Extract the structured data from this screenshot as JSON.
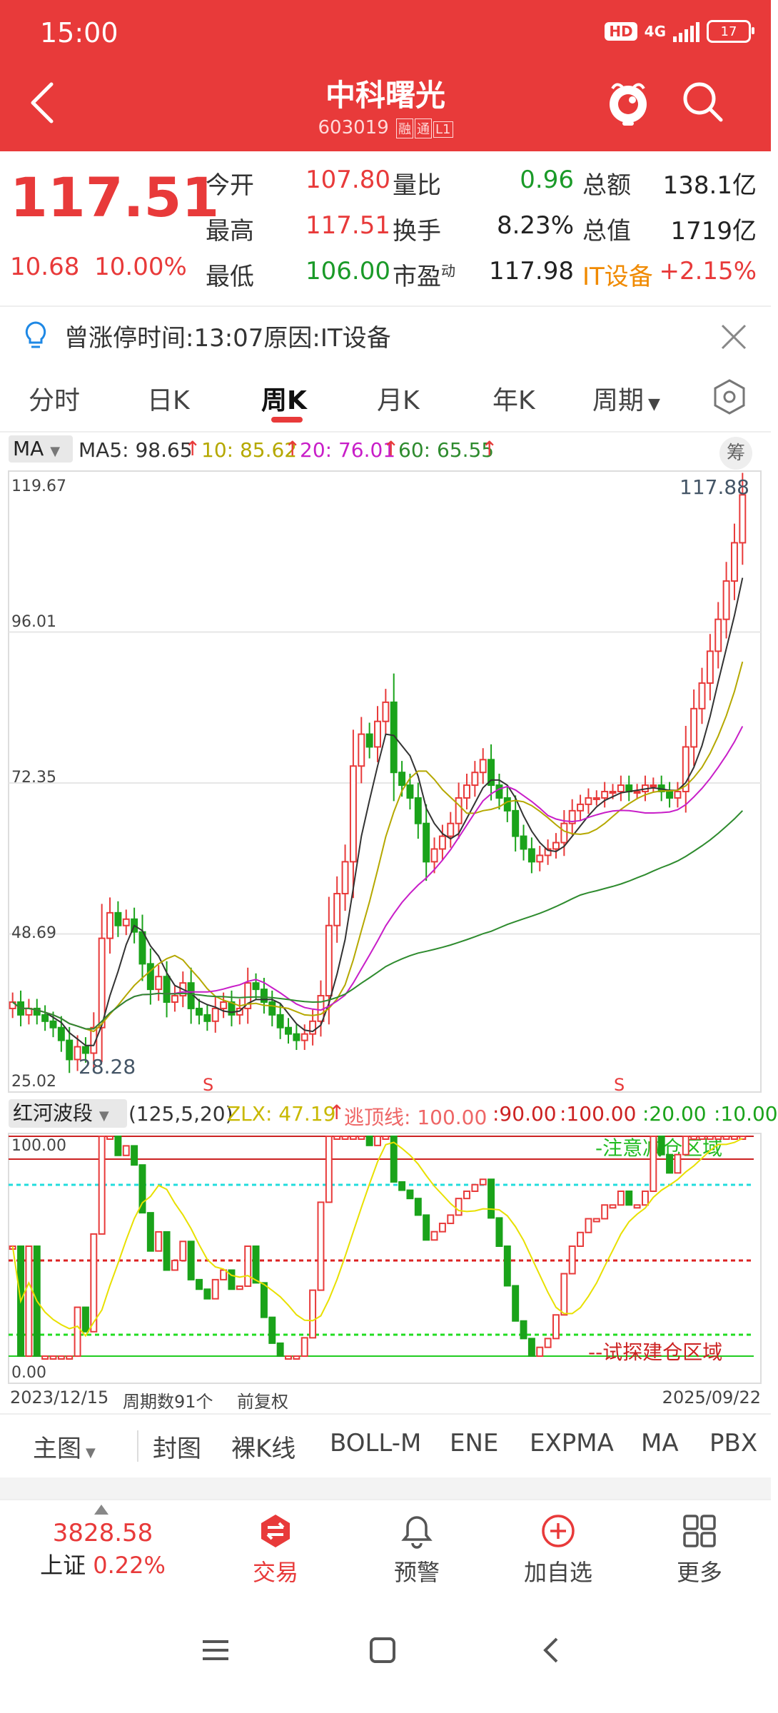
{
  "status_bar": {
    "time": "15:00",
    "hd": "HD",
    "network": "4G",
    "battery": "17"
  },
  "header": {
    "title": "中科曙光",
    "code": "603019",
    "tags": [
      "融",
      "通",
      "L1"
    ]
  },
  "quote": {
    "price": "117.51",
    "change": "10.68",
    "change_pct": "10.00%",
    "rows": [
      {
        "l1": "今开",
        "v1": "107.80",
        "l2": "量比",
        "v2": "0.96",
        "l3": "总额",
        "v3": "138.1亿"
      },
      {
        "l1": "最高",
        "v1": "117.51",
        "l2": "换手",
        "v2": "8.23%",
        "l3": "总值",
        "v3": "1719亿"
      },
      {
        "l1": "最低",
        "v1": "106.00",
        "l2": "市盈",
        "l2_sup": "动",
        "v2": "117.98",
        "l3": "IT设备",
        "v3": "+2.15%"
      }
    ]
  },
  "notice": {
    "text": "曾涨停时间:13:07原因:IT设备"
  },
  "tabs": [
    "分时",
    "日K",
    "周K",
    "月K",
    "年K",
    "周期"
  ],
  "active_tab": "周K",
  "ma": {
    "selector": "MA",
    "ma5": "MA5: 98.65",
    "ma10": "10: 85.62",
    "ma20": "20: 76.01",
    "ma60": "60: 65.55",
    "chou": "筹"
  },
  "colors": {
    "up": "#e83a3a",
    "down": "#1aa31a",
    "ma5": "#333333",
    "ma10": "#b5a800",
    "ma20": "#c81ec8",
    "ma60": "#2e8b2e"
  },
  "chart_data": [
    {
      "type": "candlestick",
      "title": "",
      "y_ticks": [
        "119.67",
        "96.01",
        "72.35",
        "48.69",
        "25.02"
      ],
      "ylim": [
        25.02,
        119.67
      ],
      "annotations": [
        "117.88",
        "28.28",
        "S",
        "S"
      ],
      "weeks": 91,
      "start": "2023/12/15",
      "end": "2025/09/22",
      "closes": [
        38,
        36,
        37,
        36,
        35,
        34,
        32,
        29,
        31,
        30,
        34,
        48,
        52,
        50,
        51,
        49,
        44,
        40,
        42,
        38,
        39,
        41,
        37,
        36,
        35,
        37,
        38,
        36,
        37,
        41,
        40,
        38,
        36,
        34,
        33,
        32,
        33,
        35,
        39,
        50,
        55,
        60,
        75,
        80,
        78,
        82,
        85,
        74,
        72,
        70,
        66,
        60,
        62,
        64,
        66,
        70,
        72,
        74,
        76,
        72,
        70,
        68,
        64,
        62,
        60,
        61,
        62,
        63,
        66,
        68,
        69,
        70,
        70,
        71,
        71,
        72,
        71,
        71,
        72,
        72,
        71,
        70,
        71,
        78,
        84,
        88,
        93,
        98,
        104,
        110,
        117.51
      ],
      "ma5_label": "MA5",
      "ma10_label": "10",
      "ma20_label": "20",
      "ma60_label": "60"
    },
    {
      "type": "line",
      "title": "红河波段",
      "params": "(125,5,20)",
      "zlx": "ZLX: 47.19",
      "levels_label": "逃顶线: 100.00",
      "levels": [
        ":90.00",
        ":100.00",
        ":20.00",
        ":10.00"
      ],
      "ylim": [
        0,
        100
      ],
      "y_ticks": [
        "100.00",
        "0.00"
      ],
      "zones": [
        "-注意减仓区域",
        "--试探建仓区域"
      ]
    }
  ],
  "footer": {
    "start": "2023/12/15",
    "periods": "周期数91个",
    "adjust": "前复权",
    "end": "2025/09/22"
  },
  "indicator_menu": [
    "主图",
    "封图",
    "裸K线",
    "BOLL-M",
    "ENE",
    "EXPMA",
    "MA",
    "PBX"
  ],
  "active_indicator": "MA",
  "bottom_nav": {
    "index_value": "3828.58",
    "index_name": "上证",
    "index_change": "0.22%",
    "items": [
      "交易",
      "预警",
      "加自选",
      "更多"
    ]
  }
}
